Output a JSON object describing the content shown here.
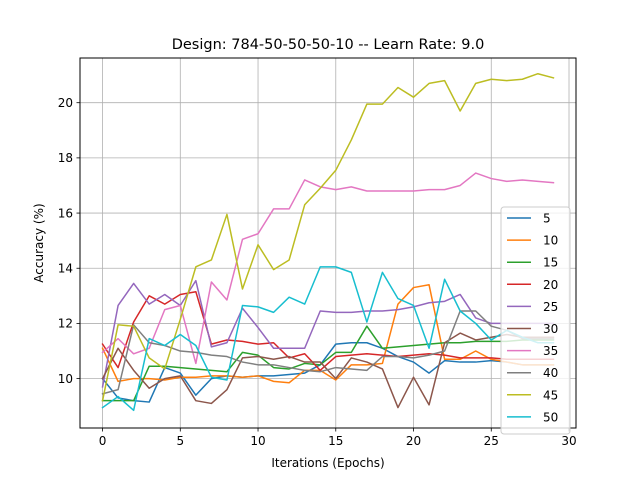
{
  "chart_data": {
    "type": "line",
    "title": "Design: 784-50-50-50-10 -- Learn Rate: 9.0",
    "xlabel": "Iterations (Epochs)",
    "ylabel": "Accuracy (%)",
    "xlim": [
      -1.45,
      30.45
    ],
    "ylim": [
      8.21,
      21.62
    ],
    "xticks": [
      0,
      5,
      10,
      15,
      20,
      25,
      30
    ],
    "yticks": [
      10,
      12,
      14,
      16,
      18,
      20
    ],
    "grid": true,
    "legend_position": "right",
    "x": [
      0,
      1,
      2,
      3,
      4,
      5,
      6,
      7,
      8,
      9,
      10,
      11,
      12,
      13,
      14,
      15,
      16,
      17,
      18,
      19,
      20,
      21,
      22,
      23,
      24,
      25,
      26,
      27,
      28,
      29
    ],
    "series": [
      {
        "name": "5",
        "color": "#1f77b4",
        "values": [
          10.0,
          9.3,
          9.2,
          9.15,
          10.4,
          10.2,
          9.4,
          10.0,
          10.1,
          10.05,
          10.1,
          10.1,
          10.15,
          10.2,
          10.5,
          11.25,
          11.3,
          11.3,
          11.1,
          10.8,
          10.6,
          10.2,
          10.65,
          10.6,
          10.6,
          10.65,
          10.6,
          10.5,
          10.5,
          10.5
        ]
      },
      {
        "name": "10",
        "color": "#ff7f0e",
        "values": [
          11.1,
          9.9,
          10.0,
          10.0,
          9.95,
          10.05,
          10.05,
          10.1,
          10.1,
          10.05,
          10.1,
          9.9,
          9.85,
          10.3,
          10.3,
          9.95,
          10.5,
          10.5,
          10.55,
          12.7,
          13.3,
          13.4,
          10.7,
          10.7,
          11.0,
          10.7,
          10.6,
          10.5,
          10.5,
          10.5
        ]
      },
      {
        "name": "15",
        "color": "#2ca02c",
        "values": [
          9.2,
          9.2,
          9.2,
          10.45,
          10.45,
          10.4,
          10.35,
          10.3,
          10.25,
          10.95,
          10.85,
          10.4,
          10.35,
          10.55,
          10.5,
          10.95,
          10.95,
          11.9,
          11.1,
          11.15,
          11.2,
          11.25,
          11.3,
          11.3,
          11.35,
          11.35,
          11.35,
          11.4,
          11.4,
          11.4
        ]
      },
      {
        "name": "20",
        "color": "#d62728",
        "values": [
          11.25,
          10.4,
          12.05,
          13.0,
          12.7,
          13.05,
          13.15,
          11.25,
          11.4,
          11.35,
          11.25,
          11.3,
          10.75,
          10.9,
          10.3,
          10.8,
          10.85,
          10.9,
          10.85,
          10.8,
          10.85,
          10.9,
          10.85,
          10.75,
          10.75,
          10.75,
          10.7,
          10.7,
          10.7,
          10.7
        ]
      },
      {
        "name": "25",
        "color": "#9467bd",
        "values": [
          9.7,
          12.65,
          13.45,
          12.7,
          13.05,
          12.65,
          13.55,
          11.15,
          11.3,
          12.55,
          11.85,
          11.1,
          11.1,
          11.1,
          12.45,
          12.4,
          12.4,
          12.45,
          12.45,
          12.5,
          12.6,
          12.75,
          12.8,
          13.05,
          12.2,
          12.0,
          12.0,
          12.0,
          12.0,
          12.0
        ]
      },
      {
        "name": "30",
        "color": "#8c564b",
        "values": [
          10.0,
          11.1,
          10.3,
          9.65,
          10.0,
          10.1,
          9.2,
          9.1,
          9.6,
          10.75,
          10.8,
          10.7,
          10.8,
          10.6,
          10.6,
          10.0,
          10.75,
          10.6,
          10.35,
          8.95,
          10.05,
          9.05,
          11.3,
          11.65,
          11.4,
          11.5,
          11.6,
          11.5,
          11.5,
          11.5
        ]
      },
      {
        "name": "35",
        "color": "#e377c2",
        "values": [
          10.95,
          11.45,
          10.9,
          11.1,
          12.5,
          12.65,
          10.55,
          13.5,
          12.85,
          15.05,
          15.25,
          16.15,
          16.15,
          17.2,
          16.95,
          16.85,
          16.95,
          16.8,
          16.8,
          16.8,
          16.8,
          16.85,
          16.85,
          17.0,
          17.45,
          17.25,
          17.15,
          17.2,
          17.15,
          17.1
        ]
      },
      {
        "name": "40",
        "color": "#7f7f7f",
        "values": [
          9.45,
          9.6,
          11.95,
          11.3,
          11.2,
          11.0,
          10.95,
          10.85,
          10.8,
          10.6,
          10.5,
          10.5,
          10.4,
          10.3,
          10.25,
          10.4,
          10.35,
          10.3,
          10.8,
          10.8,
          10.75,
          10.85,
          11.0,
          12.45,
          12.45,
          11.9,
          11.75,
          11.45,
          11.45,
          11.45
        ]
      },
      {
        "name": "45",
        "color": "#bcbd22",
        "values": [
          9.2,
          11.95,
          11.9,
          10.75,
          10.35,
          12.15,
          14.05,
          14.3,
          15.95,
          13.25,
          14.85,
          13.95,
          14.3,
          16.3,
          16.9,
          17.55,
          18.65,
          19.95,
          19.95,
          20.55,
          20.2,
          20.7,
          20.8,
          19.7,
          20.7,
          20.85,
          20.8,
          20.85,
          21.05,
          20.9
        ]
      },
      {
        "name": "50",
        "color": "#17becf",
        "values": [
          8.95,
          9.35,
          8.85,
          11.45,
          11.2,
          11.6,
          11.2,
          10.05,
          9.95,
          12.65,
          12.6,
          12.4,
          12.95,
          12.7,
          14.05,
          14.05,
          13.85,
          12.05,
          13.85,
          12.9,
          12.65,
          11.1,
          13.6,
          12.45,
          12.0,
          11.4,
          11.75,
          11.5,
          11.3,
          11.3
        ]
      }
    ]
  }
}
